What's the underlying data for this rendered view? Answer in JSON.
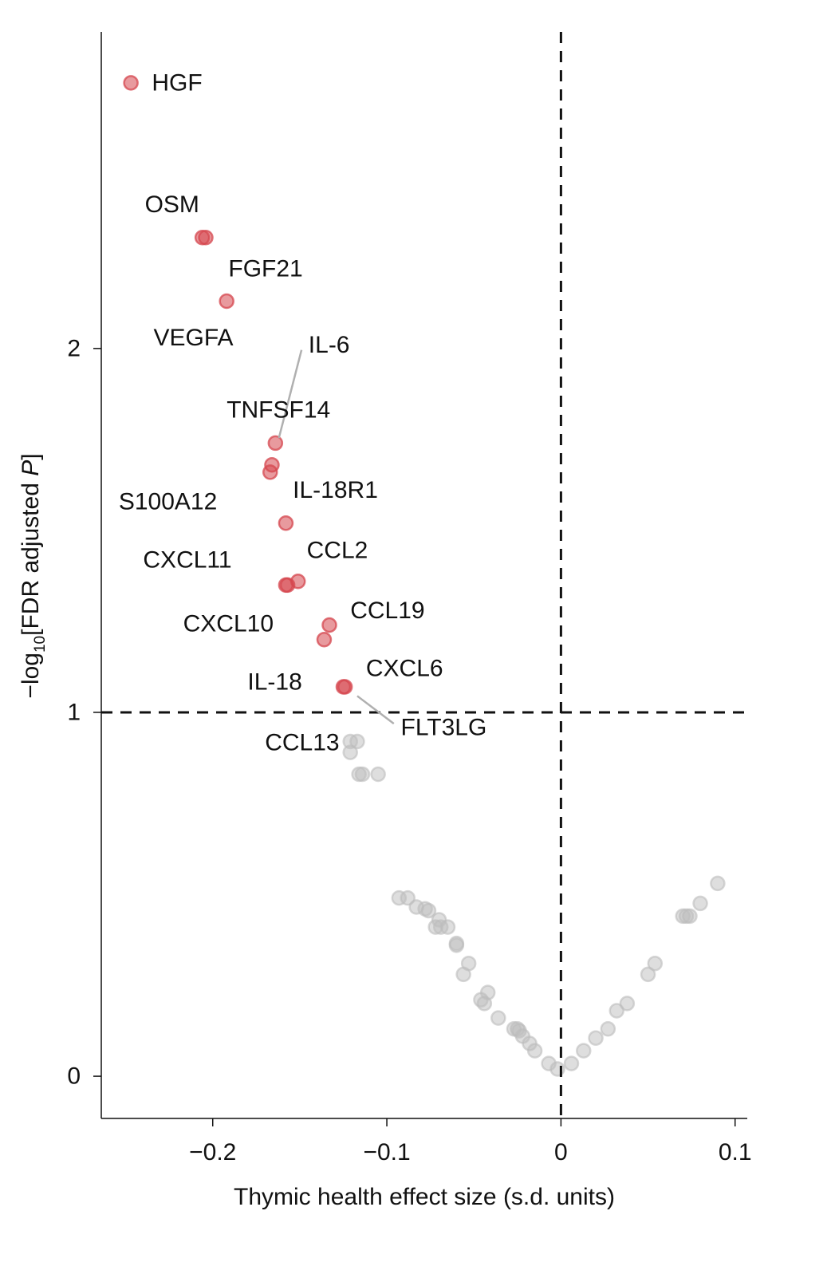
{
  "chart_data": {
    "type": "scatter",
    "title": "",
    "xlabel": "Thymic health effect size (s.d. units)",
    "ylabel": {
      "prefix": "−log",
      "subscript": "10",
      "middle": "[FDR adjusted ",
      "italic": "P",
      "suffix": "]"
    },
    "xlim": [
      -0.264,
      0.107
    ],
    "ylim": [
      -0.116,
      2.87
    ],
    "xticks": [
      {
        "value": -0.2,
        "label": "−0.2"
      },
      {
        "value": -0.1,
        "label": "−0.1"
      },
      {
        "value": 0,
        "label": "0"
      },
      {
        "value": 0.1,
        "label": "0.1"
      }
    ],
    "yticks": [
      {
        "value": 0,
        "label": "0"
      },
      {
        "value": 1,
        "label": "1"
      },
      {
        "value": 2,
        "label": "2"
      }
    ],
    "reference_lines": {
      "x": 0,
      "y": 1
    },
    "grid": false,
    "colors": {
      "significant": "#d6474f",
      "nonsignificant": "#bdbdbd"
    },
    "series": [
      {
        "name": "significant",
        "points": [
          [
            -0.247,
            2.73
          ],
          [
            -0.206,
            2.305
          ],
          [
            -0.204,
            2.305
          ],
          [
            -0.192,
            2.13
          ],
          [
            -0.164,
            1.74
          ],
          [
            -0.166,
            1.68
          ],
          [
            -0.167,
            1.66
          ],
          [
            -0.158,
            1.52
          ],
          [
            -0.158,
            1.35
          ],
          [
            -0.157,
            1.35
          ],
          [
            -0.151,
            1.36
          ],
          [
            -0.133,
            1.24
          ],
          [
            -0.136,
            1.2
          ],
          [
            -0.125,
            1.07
          ],
          [
            -0.124,
            1.07
          ]
        ]
      },
      {
        "name": "nonsignificant",
        "points": [
          [
            -0.121,
            0.92
          ],
          [
            -0.117,
            0.92
          ],
          [
            -0.121,
            0.89
          ],
          [
            -0.116,
            0.83
          ],
          [
            -0.114,
            0.83
          ],
          [
            -0.105,
            0.83
          ],
          [
            -0.093,
            0.49
          ],
          [
            -0.088,
            0.49
          ],
          [
            -0.083,
            0.465
          ],
          [
            -0.078,
            0.46
          ],
          [
            -0.076,
            0.455
          ],
          [
            -0.07,
            0.43
          ],
          [
            -0.069,
            0.41
          ],
          [
            -0.072,
            0.41
          ],
          [
            -0.065,
            0.41
          ],
          [
            -0.06,
            0.365
          ],
          [
            -0.06,
            0.36
          ],
          [
            -0.053,
            0.31
          ],
          [
            -0.056,
            0.28
          ],
          [
            -0.042,
            0.23
          ],
          [
            -0.046,
            0.21
          ],
          [
            -0.044,
            0.2
          ],
          [
            -0.036,
            0.16
          ],
          [
            -0.027,
            0.13
          ],
          [
            -0.025,
            0.13
          ],
          [
            -0.024,
            0.125
          ],
          [
            -0.022,
            0.11
          ],
          [
            -0.018,
            0.09
          ],
          [
            -0.015,
            0.07
          ],
          [
            -0.007,
            0.035
          ],
          [
            -0.002,
            0.02
          ],
          [
            0.006,
            0.035
          ],
          [
            0.013,
            0.07
          ],
          [
            0.02,
            0.105
          ],
          [
            0.027,
            0.13
          ],
          [
            0.032,
            0.18
          ],
          [
            0.038,
            0.2
          ],
          [
            0.05,
            0.28
          ],
          [
            0.054,
            0.31
          ],
          [
            0.07,
            0.44
          ],
          [
            0.072,
            0.44
          ],
          [
            0.074,
            0.44
          ],
          [
            0.08,
            0.475
          ],
          [
            0.09,
            0.53
          ]
        ]
      }
    ],
    "annotations": [
      {
        "text": "HGF",
        "x": -0.235,
        "y": 2.73
      },
      {
        "text": "OSM",
        "x": -0.239,
        "y": 2.395
      },
      {
        "text": "FGF21",
        "x": -0.191,
        "y": 2.219
      },
      {
        "text": "VEGFA",
        "x": -0.234,
        "y": 2.029
      },
      {
        "text": "IL-6",
        "x": -0.145,
        "y": 2.009
      },
      {
        "text": "TNFSF14",
        "x": -0.192,
        "y": 1.831
      },
      {
        "text": "IL-18R1",
        "x": -0.154,
        "y": 1.61
      },
      {
        "text": "S100A12",
        "x": -0.254,
        "y": 1.579
      },
      {
        "text": "CCL2",
        "x": -0.146,
        "y": 1.445
      },
      {
        "text": "CXCL11",
        "x": -0.24,
        "y": 1.419
      },
      {
        "text": "CCL19",
        "x": -0.121,
        "y": 1.279
      },
      {
        "text": "CXCL10",
        "x": -0.217,
        "y": 1.243
      },
      {
        "text": "CXCL6",
        "x": -0.112,
        "y": 1.121
      },
      {
        "text": "IL-18",
        "x": -0.18,
        "y": 1.083
      },
      {
        "text": "FLT3LG",
        "x": -0.092,
        "y": 0.958
      },
      {
        "text": "CCL13",
        "x": -0.17,
        "y": 0.917
      }
    ],
    "leader_lines": [
      {
        "label": "IL-6",
        "from": [
          -0.149,
          1.996
        ],
        "to": [
          -0.162,
          1.754
        ]
      },
      {
        "label": "FLT3LG",
        "from": [
          -0.117,
          1.045
        ],
        "to": [
          -0.096,
          0.969
        ]
      }
    ]
  }
}
